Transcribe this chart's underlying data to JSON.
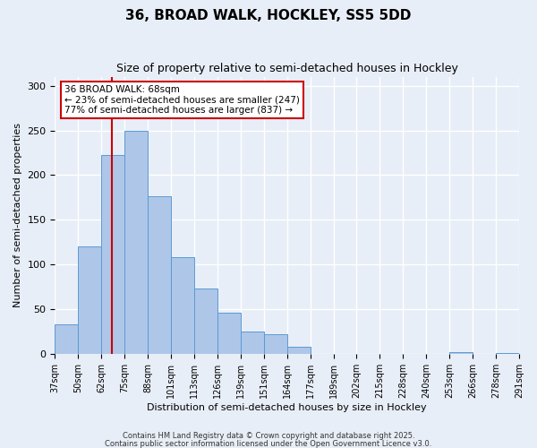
{
  "title_line1": "36, BROAD WALK, HOCKLEY, SS5 5DD",
  "title_line2": "Size of property relative to semi-detached houses in Hockley",
  "xlabel": "Distribution of semi-detached houses by size in Hockley",
  "ylabel": "Number of semi-detached properties",
  "bar_values": [
    33,
    120,
    222,
    250,
    176,
    108,
    73,
    46,
    25,
    22,
    8,
    0,
    0,
    0,
    0,
    0,
    0,
    2,
    0,
    1
  ],
  "bin_labels": [
    "37sqm",
    "50sqm",
    "62sqm",
    "75sqm",
    "88sqm",
    "101sqm",
    "113sqm",
    "126sqm",
    "139sqm",
    "151sqm",
    "164sqm",
    "177sqm",
    "189sqm",
    "202sqm",
    "215sqm",
    "228sqm",
    "240sqm",
    "253sqm",
    "266sqm",
    "278sqm",
    "291sqm"
  ],
  "bar_color": "#aec6e8",
  "bar_edge_color": "#5b9bd5",
  "bg_color": "#e8eef7",
  "grid_color": "#ffffff",
  "vline_color": "#cc0000",
  "annotation_title": "36 BROAD WALK: 68sqm",
  "annotation_line2": "← 23% of semi-detached houses are smaller (247)",
  "annotation_line3": "77% of semi-detached houses are larger (837) →",
  "annotation_box_color": "#ffffff",
  "annotation_border_color": "#cc0000",
  "ylim": [
    0,
    310
  ],
  "yticks": [
    0,
    50,
    100,
    150,
    200,
    250,
    300
  ],
  "footnote1": "Contains HM Land Registry data © Crown copyright and database right 2025.",
  "footnote2": "Contains public sector information licensed under the Open Government Licence v3.0."
}
